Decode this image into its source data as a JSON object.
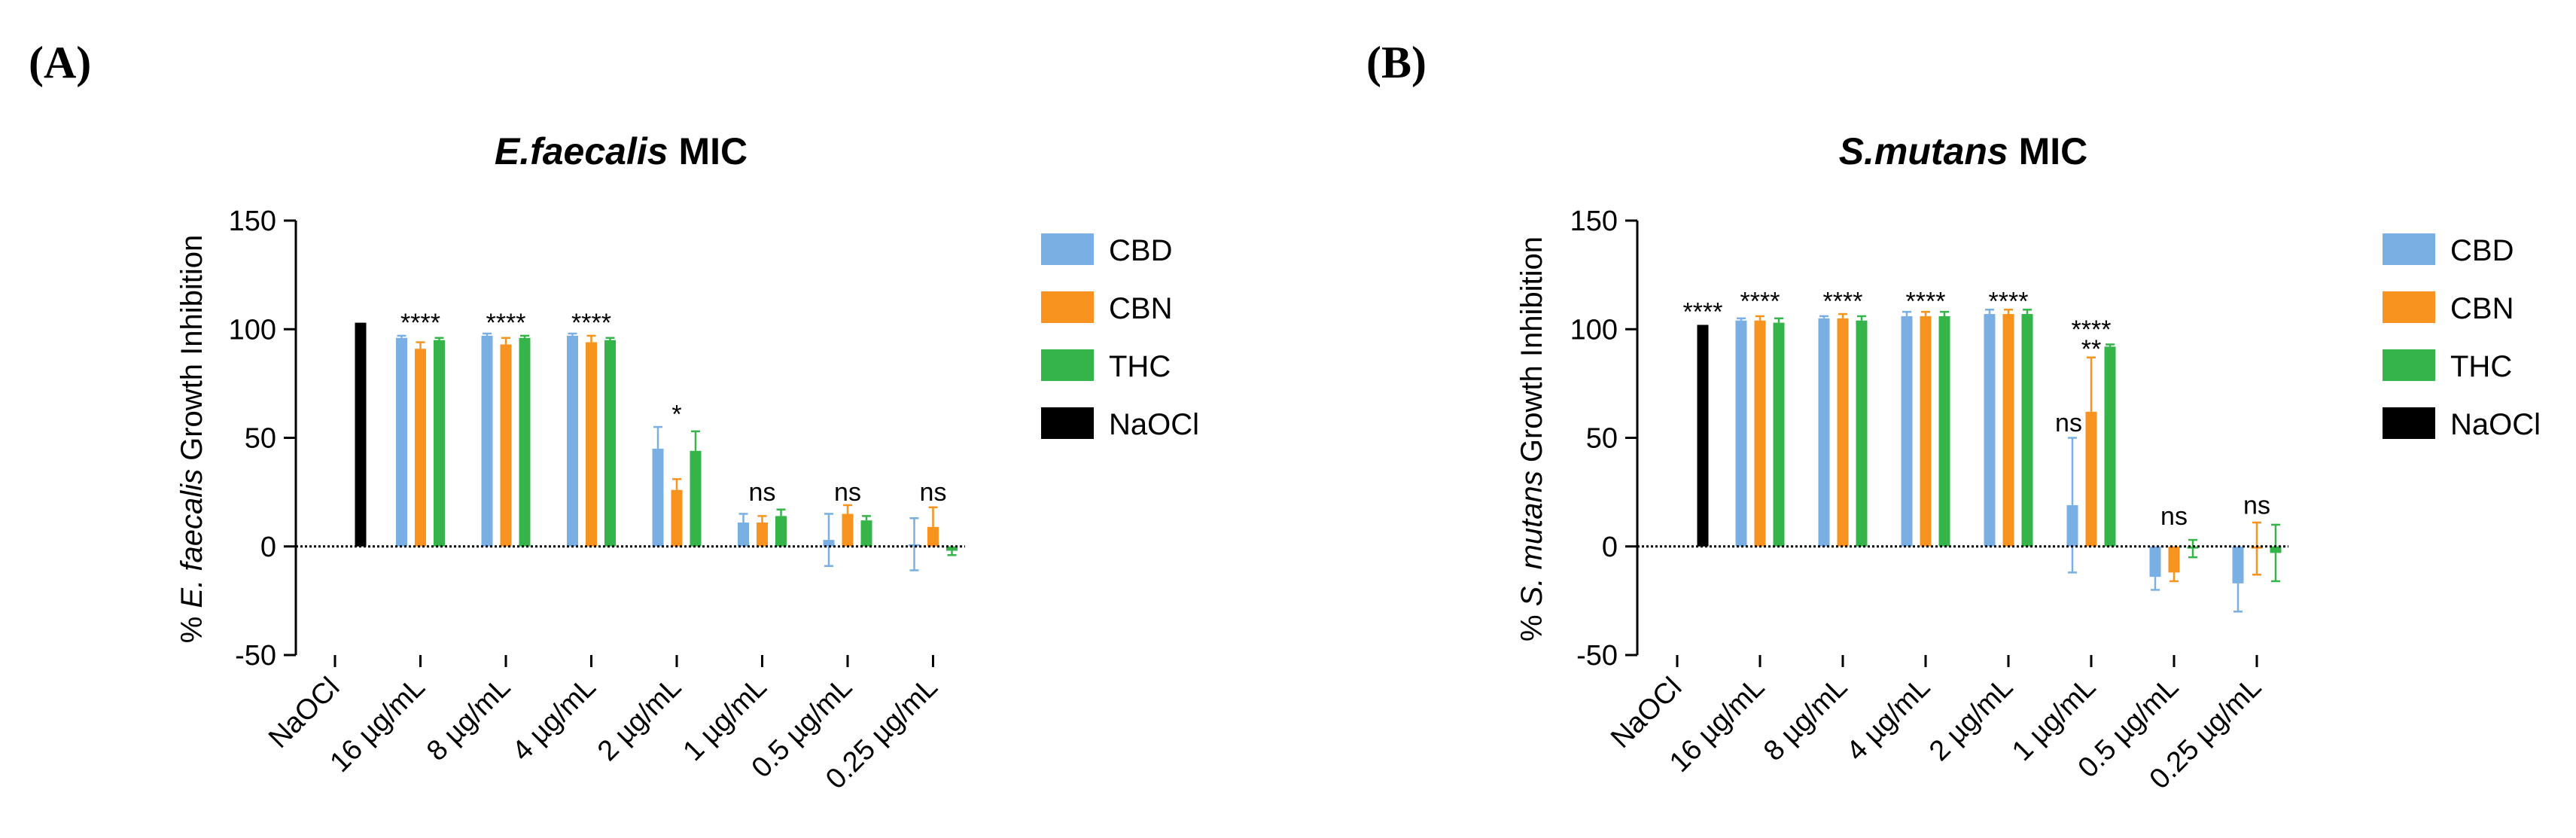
{
  "colors": {
    "CBD": "#7aafe3",
    "CBN": "#f7931e",
    "THC": "#35b44a",
    "NaOCl": "#000000"
  },
  "chart_data": [
    {
      "panel_label": "(A)",
      "type": "bar",
      "title": "E.faecalis MIC",
      "title_italic": "E.faecalis",
      "title_rest": " MIC",
      "ylabel": "% E. faecalis Growth Inhibition",
      "ylabel_prefix": "% ",
      "ylabel_italic": "E. faecalis",
      "ylabel_rest": " Growth Inhibition",
      "ylim": [
        -50,
        150
      ],
      "yticks": [
        "-50",
        "0",
        "50",
        "100",
        "150"
      ],
      "grid": false,
      "legend_position": "right",
      "categories": [
        "NaOCl",
        "16 µg/mL",
        "8 µg/mL",
        "4 µg/mL",
        "2 µg/mL",
        "1 µg/mL",
        "0.5 µg/mL",
        "0.25 µg/mL"
      ],
      "naocl": {
        "value": 103,
        "error": 0
      },
      "series": [
        {
          "name": "CBD",
          "values": [
            null,
            96,
            97,
            97,
            45,
            11,
            3,
            1
          ],
          "errors": [
            null,
            1,
            1,
            1,
            10,
            4,
            12,
            12
          ]
        },
        {
          "name": "CBN",
          "values": [
            null,
            91,
            93,
            94,
            26,
            11,
            15,
            9
          ],
          "errors": [
            null,
            3,
            3,
            3,
            5,
            3,
            4,
            9
          ]
        },
        {
          "name": "THC",
          "values": [
            null,
            95,
            96,
            95,
            44,
            14,
            12,
            -2
          ],
          "errors": [
            null,
            1,
            1,
            1,
            9,
            3,
            2,
            2
          ]
        }
      ],
      "significance": [
        {
          "category": "16 µg/mL",
          "label": "****",
          "height": 99
        },
        {
          "category": "8 µg/mL",
          "label": "****",
          "height": 99
        },
        {
          "category": "4 µg/mL",
          "label": "****",
          "height": 99
        },
        {
          "category": "2 µg/mL",
          "label": "*",
          "height": 57
        },
        {
          "category": "1 µg/mL",
          "label": "ns",
          "height": 21
        },
        {
          "category": "0.5 µg/mL",
          "label": "ns",
          "height": 21
        },
        {
          "category": "0.25 µg/mL",
          "label": "ns",
          "height": 21
        }
      ],
      "legend": [
        "CBD",
        "CBN",
        "THC",
        "NaOCl"
      ]
    },
    {
      "panel_label": "(B)",
      "type": "bar",
      "title": "S.mutans MIC",
      "title_italic": "S.mutans",
      "title_rest": " MIC",
      "ylabel": "% S. mutans Growth Inhibition",
      "ylabel_prefix": "% ",
      "ylabel_italic": "S. mutans",
      "ylabel_rest": " Growth Inhibition",
      "ylim": [
        -50,
        150
      ],
      "yticks": [
        "-50",
        "0",
        "50",
        "100",
        "150"
      ],
      "grid": false,
      "legend_position": "right",
      "categories": [
        "NaOCl",
        "16 µg/mL",
        "8 µg/mL",
        "4 µg/mL",
        "2 µg/mL",
        "1 µg/mL",
        "0.5 µg/mL",
        "0.25 µg/mL"
      ],
      "naocl": {
        "value": 102,
        "error": 0
      },
      "series": [
        {
          "name": "CBD",
          "values": [
            null,
            104,
            105,
            106,
            107,
            19,
            -14,
            -17
          ],
          "errors": [
            null,
            1,
            1,
            2,
            2,
            31,
            6,
            13
          ]
        },
        {
          "name": "CBN",
          "values": [
            null,
            104,
            105,
            106,
            107,
            62,
            -12,
            -1
          ],
          "errors": [
            null,
            2,
            2,
            2,
            2,
            25,
            4,
            12
          ]
        },
        {
          "name": "THC",
          "values": [
            null,
            103,
            104,
            106,
            107,
            92,
            -1,
            -3
          ],
          "errors": [
            null,
            2,
            2,
            2,
            2,
            1,
            4,
            13
          ]
        }
      ],
      "significance": [
        {
          "category": "NaOCl",
          "label": "****",
          "height": 104
        },
        {
          "category": "16 µg/mL",
          "label": "****",
          "height": 109
        },
        {
          "category": "8 µg/mL",
          "label": "****",
          "height": 109
        },
        {
          "category": "4 µg/mL",
          "label": "****",
          "height": 109
        },
        {
          "category": "2 µg/mL",
          "label": "****",
          "height": 109
        },
        {
          "category": "1 µg/mL",
          "label": "****",
          "height": 96,
          "extra_label": "**",
          "extra_height": 87,
          "ns_label": "ns",
          "ns_height": 53
        },
        {
          "category": "0.5 µg/mL",
          "label": "ns",
          "height": 10
        },
        {
          "category": "0.25 µg/mL",
          "label": "ns",
          "height": 15
        }
      ],
      "legend": [
        "CBD",
        "CBN",
        "THC",
        "NaOCl"
      ]
    }
  ]
}
